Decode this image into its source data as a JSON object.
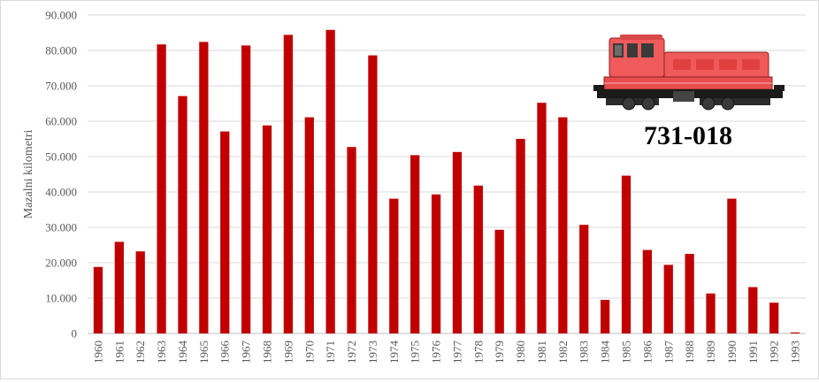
{
  "chart_data": {
    "type": "bar",
    "title": "",
    "xlabel": "",
    "ylabel": "Mazalni kilometri",
    "ylim": [
      0,
      90000
    ],
    "ytick_step": 10000,
    "ytick_labels": [
      "0",
      "10.000",
      "20.000",
      "30.000",
      "40.000",
      "50.000",
      "60.000",
      "70.000",
      "80.000",
      "90.000"
    ],
    "grid": true,
    "legend": "none",
    "bar_color": "#c00000",
    "categories": [
      "1960",
      "1961",
      "1962",
      "1963",
      "1964",
      "1965",
      "1966",
      "1967",
      "1968",
      "1969",
      "1970",
      "1971",
      "1972",
      "1973",
      "1974",
      "1975",
      "1976",
      "1977",
      "1978",
      "1979",
      "1980",
      "1981",
      "1982",
      "1983",
      "1984",
      "1985",
      "1986",
      "1987",
      "1988",
      "1989",
      "1990",
      "1991",
      "1992",
      "1993"
    ],
    "values": [
      18800,
      25900,
      23200,
      81700,
      67100,
      82400,
      57100,
      81400,
      58800,
      84400,
      61100,
      85800,
      52700,
      78600,
      38100,
      50400,
      39300,
      51300,
      41800,
      29300,
      55000,
      65200,
      61100,
      30700,
      9500,
      44600,
      23600,
      19400,
      22500,
      11300,
      38100,
      13100,
      8700,
      300
    ]
  },
  "image": {
    "locomotive_label": "731-018",
    "locomotive_icon": "locomotive-icon",
    "body_color": "#f05a5a",
    "frame_color": "#1a1a1a"
  }
}
